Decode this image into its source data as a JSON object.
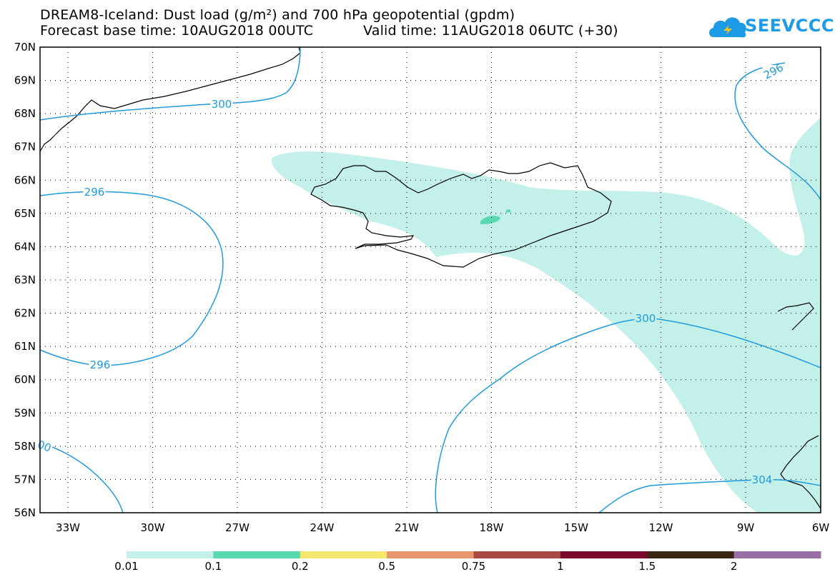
{
  "title": {
    "line1": "DREAM8-Iceland: Dust load (g/m²) and 700 hPa geopotential (gpdm)",
    "line2_left": "Forecast base time: 10AUG2018 00UTC",
    "line2_right": "Valid time: 11AUG2018 06UTC (+30)"
  },
  "logo": {
    "text": "SEEVCCC",
    "icon": "cloud-icon",
    "color": "#1d9be6"
  },
  "axes": {
    "lat_labels": [
      "70N",
      "69N",
      "68N",
      "67N",
      "66N",
      "65N",
      "64N",
      "63N",
      "62N",
      "61N",
      "60N",
      "59N",
      "58N",
      "57N",
      "56N"
    ],
    "lon_labels": [
      "33W",
      "30W",
      "27W",
      "24W",
      "21W",
      "18W",
      "15W",
      "12W",
      "9W",
      "6W"
    ]
  },
  "contours": {
    "color": "#1f9bdc",
    "labels": [
      "300",
      "296",
      "296",
      "296",
      "00",
      "300",
      "304"
    ]
  },
  "dust_colors": {
    "low": "#c4f0ea",
    "mid": "#5ad9b0"
  },
  "legend": {
    "colors": [
      "#c4f0ea",
      "#5ad9b0",
      "#f5e66e",
      "#e8966e",
      "#a94a43",
      "#7a0a2c",
      "#3a2713",
      "#9a6fa6"
    ],
    "labels": [
      "0.01",
      "0.1",
      "0.2",
      "0.5",
      "0.75",
      "1",
      "1.5",
      "2"
    ]
  }
}
